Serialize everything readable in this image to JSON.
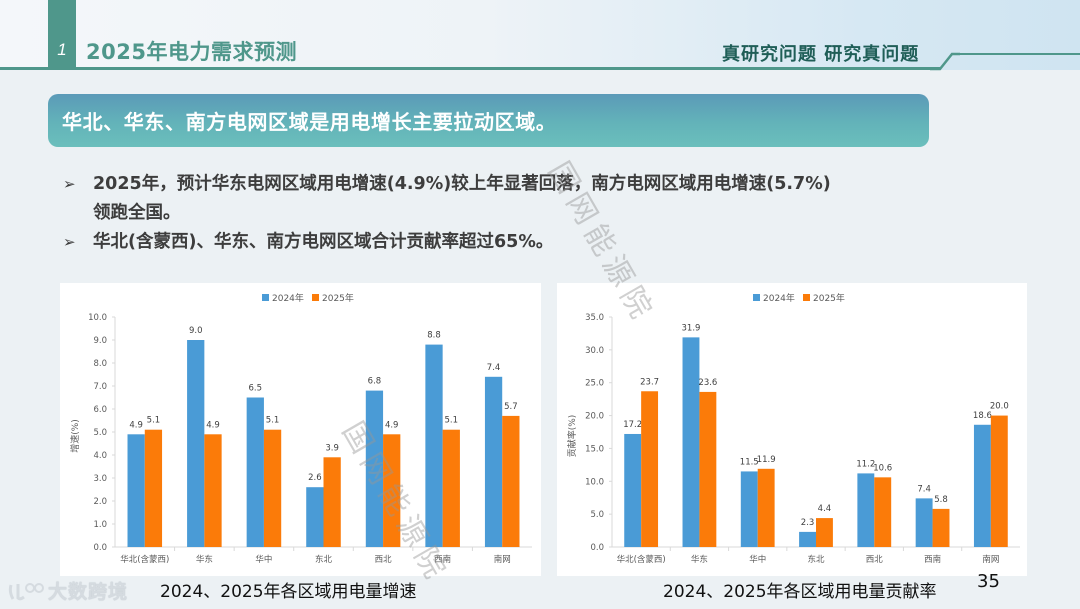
{
  "header": {
    "section_number": "1",
    "section_title": "2025年电力需求预测",
    "slogan": "真研究问题 研究真问题"
  },
  "banner": {
    "text": "华北、华东、南方电网区域是用电增长主要拉动区域。"
  },
  "bullets": [
    {
      "marker": "➢",
      "line1": "2025年，预计华东电网区域用电增速(4.9%)较上年显著回落，南方电网区域用电增速(5.7%)",
      "line2": "领跑全国。"
    },
    {
      "marker": "➢",
      "line1": "华北(含蒙西)、华东、南方电网区域合计贡献率超过65%。"
    }
  ],
  "watermark": "国网能源院",
  "footer": {
    "logo_text": "大数跨境",
    "page_number": "35"
  },
  "colors": {
    "series_2024": "#4a9bd6",
    "series_2025": "#fb7b09",
    "accent": "#4f978b"
  },
  "chart_data": [
    {
      "type": "bar",
      "title": "2024、2025年各区域用电量增速",
      "xlabel": "",
      "ylabel": "增速(%)",
      "ylim": [
        0,
        10
      ],
      "yticks": [
        "0.0",
        "1.0",
        "2.0",
        "3.0",
        "4.0",
        "5.0",
        "6.0",
        "7.0",
        "8.0",
        "9.0",
        "10.0"
      ],
      "grid": false,
      "legend_position": "top",
      "categories": [
        "华北(含蒙西)",
        "华东",
        "华中",
        "东北",
        "西北",
        "西南",
        "南网"
      ],
      "series": [
        {
          "name": "2024年",
          "values": [
            4.9,
            9.0,
            6.5,
            2.6,
            6.8,
            8.8,
            7.4
          ]
        },
        {
          "name": "2025年",
          "values": [
            5.1,
            4.9,
            5.1,
            3.9,
            4.9,
            5.1,
            5.7
          ]
        }
      ]
    },
    {
      "type": "bar",
      "title": "2024、2025年各区域用电量贡献率",
      "xlabel": "",
      "ylabel": "贡献率(%)",
      "ylim": [
        0,
        35
      ],
      "yticks": [
        "0.0",
        "5.0",
        "10.0",
        "15.0",
        "20.0",
        "25.0",
        "30.0",
        "35.0"
      ],
      "grid": false,
      "legend_position": "top",
      "categories": [
        "华北(含蒙西)",
        "华东",
        "华中",
        "东北",
        "西北",
        "西南",
        "南网"
      ],
      "series": [
        {
          "name": "2024年",
          "values": [
            17.2,
            31.9,
            11.5,
            2.3,
            11.2,
            7.4,
            18.6
          ]
        },
        {
          "name": "2025年",
          "values": [
            23.7,
            23.6,
            11.9,
            4.4,
            10.6,
            5.8,
            20.0
          ]
        }
      ]
    }
  ]
}
